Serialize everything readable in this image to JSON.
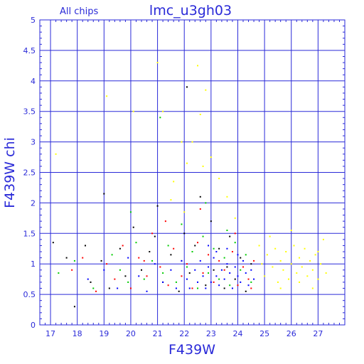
{
  "chart_data": {
    "type": "scatter",
    "title": "lmc_u3gh03",
    "subtitle": "All chips",
    "xlabel": "F439W",
    "ylabel": "F439W chi",
    "xlim": [
      16.6,
      28.0
    ],
    "ylim": [
      0,
      5
    ],
    "xticks": [
      "17",
      "18",
      "19",
      "20",
      "21",
      "22",
      "23",
      "24",
      "25",
      "26",
      "27"
    ],
    "yticks": [
      "0",
      "0.5",
      "1",
      "1.5",
      "2",
      "2.5",
      "3",
      "3.5",
      "4",
      "4.5",
      "5"
    ],
    "grid": true,
    "colors": {
      "axis": "#2a2ad8",
      "grid": "#2a2ad8",
      "text": "#2a2ad8",
      "series": [
        "#000000",
        "#ff0000",
        "#00cc00",
        "#0000ff",
        "#ffff00"
      ]
    },
    "series": [
      {
        "color": "#000000",
        "points": [
          [
            17.1,
            1.35
          ],
          [
            17.6,
            1.1
          ],
          [
            17.9,
            0.3
          ],
          [
            18.3,
            1.3
          ],
          [
            18.5,
            0.7
          ],
          [
            18.9,
            1.05
          ],
          [
            19.0,
            2.15
          ],
          [
            19.2,
            0.6
          ],
          [
            19.6,
            1.25
          ],
          [
            19.8,
            0.8
          ],
          [
            20.1,
            1.6
          ],
          [
            20.4,
            0.9
          ],
          [
            20.7,
            1.2
          ],
          [
            21.0,
            1.95
          ],
          [
            21.2,
            0.7
          ],
          [
            21.5,
            1.15
          ],
          [
            21.8,
            0.55
          ],
          [
            22.0,
            1.5
          ],
          [
            22.2,
            0.85
          ],
          [
            22.4,
            1.3
          ],
          [
            22.6,
            2.1
          ],
          [
            22.8,
            0.65
          ],
          [
            23.0,
            1.7
          ],
          [
            23.1,
            0.9
          ],
          [
            23.3,
            1.25
          ],
          [
            23.5,
            0.6
          ],
          [
            23.7,
            1.45
          ],
          [
            23.9,
            0.75
          ],
          [
            24.1,
            1.1
          ],
          [
            24.3,
            0.55
          ],
          [
            24.5,
            1.0
          ],
          [
            22.1,
            3.9
          ],
          [
            20.9,
            1.45
          ],
          [
            21.9,
            1.05
          ],
          [
            23.6,
            0.95
          ]
        ]
      },
      {
        "color": "#ff0000",
        "points": [
          [
            17.8,
            0.9
          ],
          [
            18.2,
            1.1
          ],
          [
            18.7,
            0.55
          ],
          [
            19.1,
            1.0
          ],
          [
            19.4,
            0.75
          ],
          [
            19.7,
            1.3
          ],
          [
            20.0,
            0.6
          ],
          [
            20.3,
            1.1
          ],
          [
            20.6,
            0.8
          ],
          [
            20.8,
            1.5
          ],
          [
            21.1,
            0.95
          ],
          [
            21.4,
            0.65
          ],
          [
            21.6,
            1.25
          ],
          [
            21.9,
            0.8
          ],
          [
            22.1,
            1.0
          ],
          [
            22.3,
            0.6
          ],
          [
            22.5,
            1.35
          ],
          [
            22.7,
            0.85
          ],
          [
            22.9,
            1.15
          ],
          [
            23.1,
            0.7
          ],
          [
            23.3,
            1.05
          ],
          [
            23.5,
            0.9
          ],
          [
            23.8,
            1.2
          ],
          [
            24.0,
            0.65
          ],
          [
            24.2,
            0.95
          ],
          [
            24.4,
            0.75
          ],
          [
            24.6,
            1.05
          ],
          [
            22.6,
            1.9
          ],
          [
            21.3,
            1.7
          ],
          [
            20.5,
            1.05
          ],
          [
            23.9,
            1.5
          ],
          [
            24.5,
            0.6
          ]
        ]
      },
      {
        "color": "#00cc00",
        "points": [
          [
            17.3,
            0.85
          ],
          [
            17.9,
            1.05
          ],
          [
            18.6,
            0.6
          ],
          [
            19.3,
            1.15
          ],
          [
            19.6,
            0.9
          ],
          [
            19.9,
            0.7
          ],
          [
            20.2,
            1.35
          ],
          [
            20.5,
            0.75
          ],
          [
            20.8,
            1.05
          ],
          [
            21.1,
            3.4
          ],
          [
            21.2,
            0.85
          ],
          [
            21.4,
            1.3
          ],
          [
            21.7,
            0.7
          ],
          [
            21.9,
            1.65
          ],
          [
            22.1,
            0.95
          ],
          [
            22.3,
            1.2
          ],
          [
            22.5,
            0.6
          ],
          [
            22.7,
            1.45
          ],
          [
            22.9,
            0.85
          ],
          [
            23.1,
            1.25
          ],
          [
            23.3,
            0.75
          ],
          [
            23.5,
            1.1
          ],
          [
            23.7,
            0.65
          ],
          [
            23.9,
            1.35
          ],
          [
            24.1,
            0.9
          ],
          [
            24.3,
            1.15
          ],
          [
            24.5,
            0.7
          ],
          [
            20.0,
            1.85
          ],
          [
            22.8,
            2.0
          ],
          [
            23.6,
            1.55
          ]
        ]
      },
      {
        "color": "#0000ff",
        "points": [
          [
            18.4,
            0.75
          ],
          [
            19.0,
            0.9
          ],
          [
            19.5,
            0.6
          ],
          [
            19.9,
            1.1
          ],
          [
            20.3,
            0.8
          ],
          [
            20.6,
            0.55
          ],
          [
            20.9,
            1.0
          ],
          [
            21.2,
            0.7
          ],
          [
            21.5,
            0.9
          ],
          [
            21.7,
            0.6
          ],
          [
            21.9,
            1.05
          ],
          [
            22.1,
            0.75
          ],
          [
            22.2,
            0.6
          ],
          [
            22.4,
            0.9
          ],
          [
            22.5,
            0.7
          ],
          [
            22.6,
            1.05
          ],
          [
            22.7,
            0.8
          ],
          [
            22.8,
            0.6
          ],
          [
            22.9,
            0.95
          ],
          [
            23.0,
            0.7
          ],
          [
            23.1,
            1.1
          ],
          [
            23.2,
            0.8
          ],
          [
            23.3,
            0.65
          ],
          [
            23.4,
            0.9
          ],
          [
            23.5,
            0.75
          ],
          [
            23.6,
            1.0
          ],
          [
            23.7,
            0.85
          ],
          [
            23.8,
            0.6
          ],
          [
            23.9,
            0.95
          ],
          [
            24.0,
            0.8
          ],
          [
            24.1,
            0.7
          ],
          [
            24.2,
            1.05
          ],
          [
            24.3,
            0.85
          ],
          [
            24.4,
            0.65
          ],
          [
            24.5,
            0.9
          ],
          [
            24.6,
            0.75
          ],
          [
            23.2,
            1.2
          ],
          [
            22.9,
            1.3
          ],
          [
            23.6,
            1.25
          ],
          [
            24.0,
            1.15
          ]
        ]
      },
      {
        "color": "#ffff00",
        "points": [
          [
            17.2,
            2.8
          ],
          [
            19.1,
            3.75
          ],
          [
            20.1,
            3.5
          ],
          [
            21.0,
            4.3
          ],
          [
            21.2,
            3.5
          ],
          [
            21.6,
            2.35
          ],
          [
            21.9,
            3.0
          ],
          [
            22.1,
            2.65
          ],
          [
            22.3,
            3.0
          ],
          [
            22.5,
            4.25
          ],
          [
            22.6,
            3.45
          ],
          [
            22.8,
            3.85
          ],
          [
            23.0,
            2.75
          ],
          [
            23.3,
            2.4
          ],
          [
            23.6,
            2.1
          ],
          [
            21.5,
            2.05
          ],
          [
            22.0,
            1.85
          ],
          [
            22.7,
            2.6
          ],
          [
            23.9,
            1.75
          ],
          [
            24.8,
            1.3
          ],
          [
            25.0,
            0.8
          ],
          [
            25.1,
            1.15
          ],
          [
            25.3,
            0.95
          ],
          [
            25.4,
            1.25
          ],
          [
            25.5,
            0.7
          ],
          [
            25.6,
            1.05
          ],
          [
            25.7,
            0.9
          ],
          [
            25.8,
            1.2
          ],
          [
            25.9,
            0.75
          ],
          [
            26.0,
            1.0
          ],
          [
            26.1,
            1.3
          ],
          [
            26.2,
            0.85
          ],
          [
            26.3,
            1.1
          ],
          [
            26.4,
            0.95
          ],
          [
            26.5,
            1.25
          ],
          [
            26.6,
            0.8
          ],
          [
            26.7,
            1.05
          ],
          [
            26.8,
            0.9
          ],
          [
            26.9,
            1.15
          ],
          [
            27.0,
            0.75
          ],
          [
            27.1,
            1.0
          ],
          [
            27.2,
            1.4
          ],
          [
            27.3,
            0.85
          ],
          [
            25.2,
            1.45
          ],
          [
            26.0,
            1.55
          ],
          [
            26.8,
            0.6
          ],
          [
            25.6,
            0.6
          ],
          [
            24.9,
            1.0
          ],
          [
            27.0,
            1.2
          ],
          [
            26.3,
            0.7
          ]
        ]
      }
    ]
  }
}
